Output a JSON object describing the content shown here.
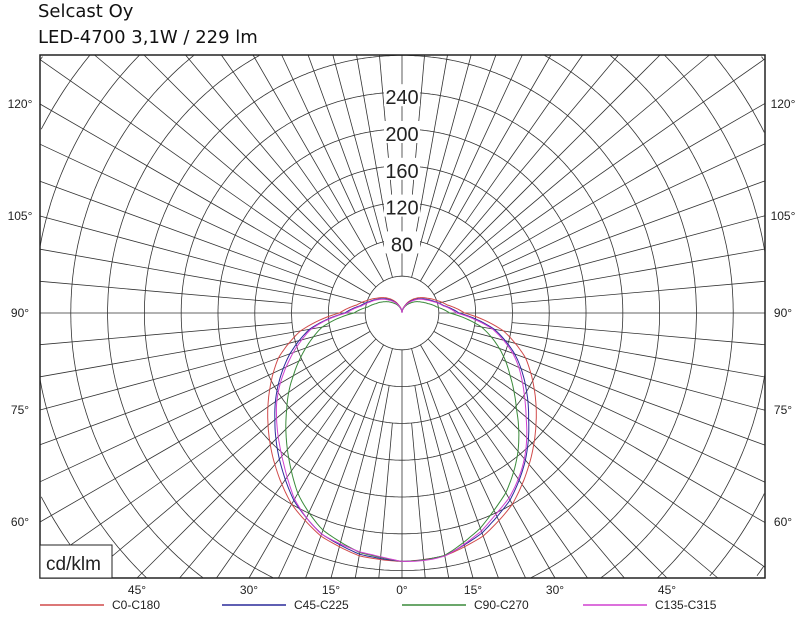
{
  "chart_data": {
    "type": "polar",
    "title": "Selcast Oy",
    "subtitle": "LED-4700 3,1W / 229 lm",
    "unit_label": "cd/klm",
    "radial_ticks": [
      80,
      120,
      160,
      200,
      240
    ],
    "angle_ticks_bottom": [
      "45°",
      "30°",
      "15°",
      "0°",
      "15°",
      "30°",
      "45°"
    ],
    "angle_ticks_side": [
      "120°",
      "105°",
      "90°",
      "75°",
      "60°"
    ],
    "angles": [
      0,
      10,
      20,
      30,
      40,
      50,
      60,
      70,
      80,
      90,
      100,
      110,
      120,
      140,
      160,
      180
    ],
    "series": [
      {
        "name": "C0-C180",
        "color": "#d04a4a",
        "values": [
          270,
          268,
          258,
          240,
          215,
          190,
          166,
          143,
          112,
          68,
          50,
          40,
          32,
          20,
          8,
          0
        ]
      },
      {
        "name": "C45-C225",
        "color": "#2a2a9a",
        "values": [
          270,
          267,
          255,
          235,
          208,
          180,
          155,
          130,
          102,
          62,
          46,
          37,
          30,
          18,
          7,
          0
        ]
      },
      {
        "name": "C90-C270",
        "color": "#3a8a3a",
        "values": [
          270,
          266,
          250,
          226,
          195,
          163,
          136,
          112,
          88,
          52,
          38,
          30,
          24,
          14,
          6,
          0
        ]
      },
      {
        "name": "C135-C315",
        "color": "#d040d0",
        "values": [
          270,
          266,
          254,
          233,
          205,
          177,
          152,
          127,
          100,
          60,
          45,
          36,
          29,
          17,
          7,
          0
        ]
      }
    ],
    "grid": true,
    "legend": "bottom"
  }
}
